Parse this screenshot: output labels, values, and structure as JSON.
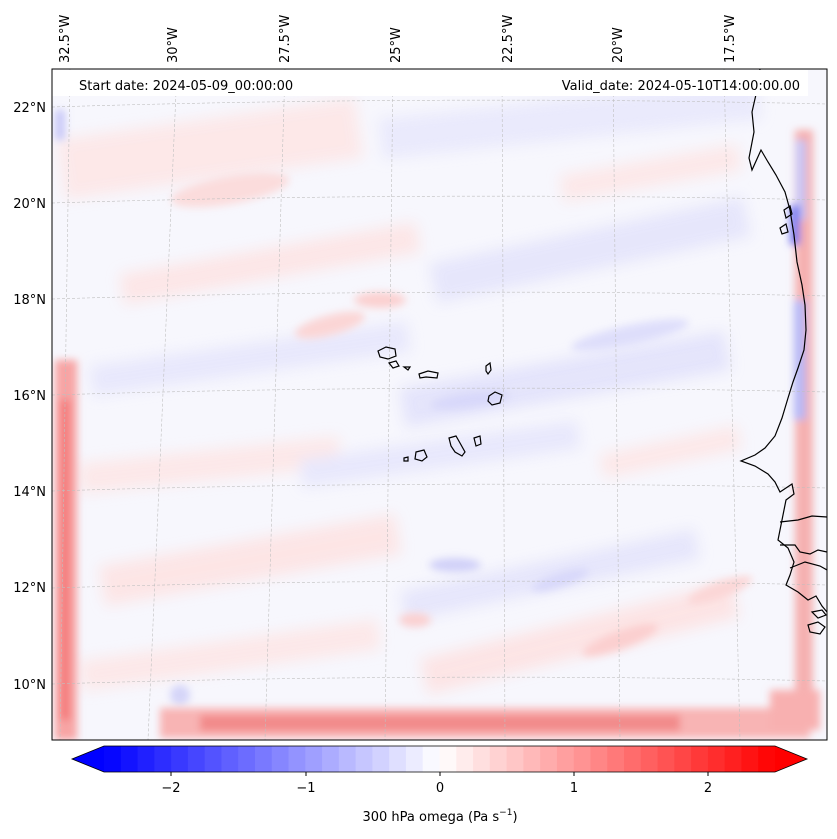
{
  "map": {
    "start_date_label": "Start date: 2024-05-09_00:00:00",
    "valid_date_label": "Valid_date: 2024-05-10T14:00:00.00",
    "lon_ticks": [
      "32.5°W",
      "30°W",
      "27.5°W",
      "25°W",
      "22.5°W",
      "20°W",
      "17.5°W"
    ],
    "lat_ticks": [
      "22°N",
      "20°N",
      "18°N",
      "16°N",
      "14°N",
      "12°N",
      "10°N"
    ]
  },
  "colorbar": {
    "ticks": [
      "−2",
      "−1",
      "0",
      "1",
      "2"
    ],
    "label_prefix": "300 hPa omega (Pa s",
    "label_exponent": "−1",
    "label_suffix": ")",
    "vmin": -2.7,
    "vmax": 2.7,
    "colors": {
      "negative": "#0000ff",
      "zero": "#ffffff",
      "positive": "#ff0000"
    }
  }
}
